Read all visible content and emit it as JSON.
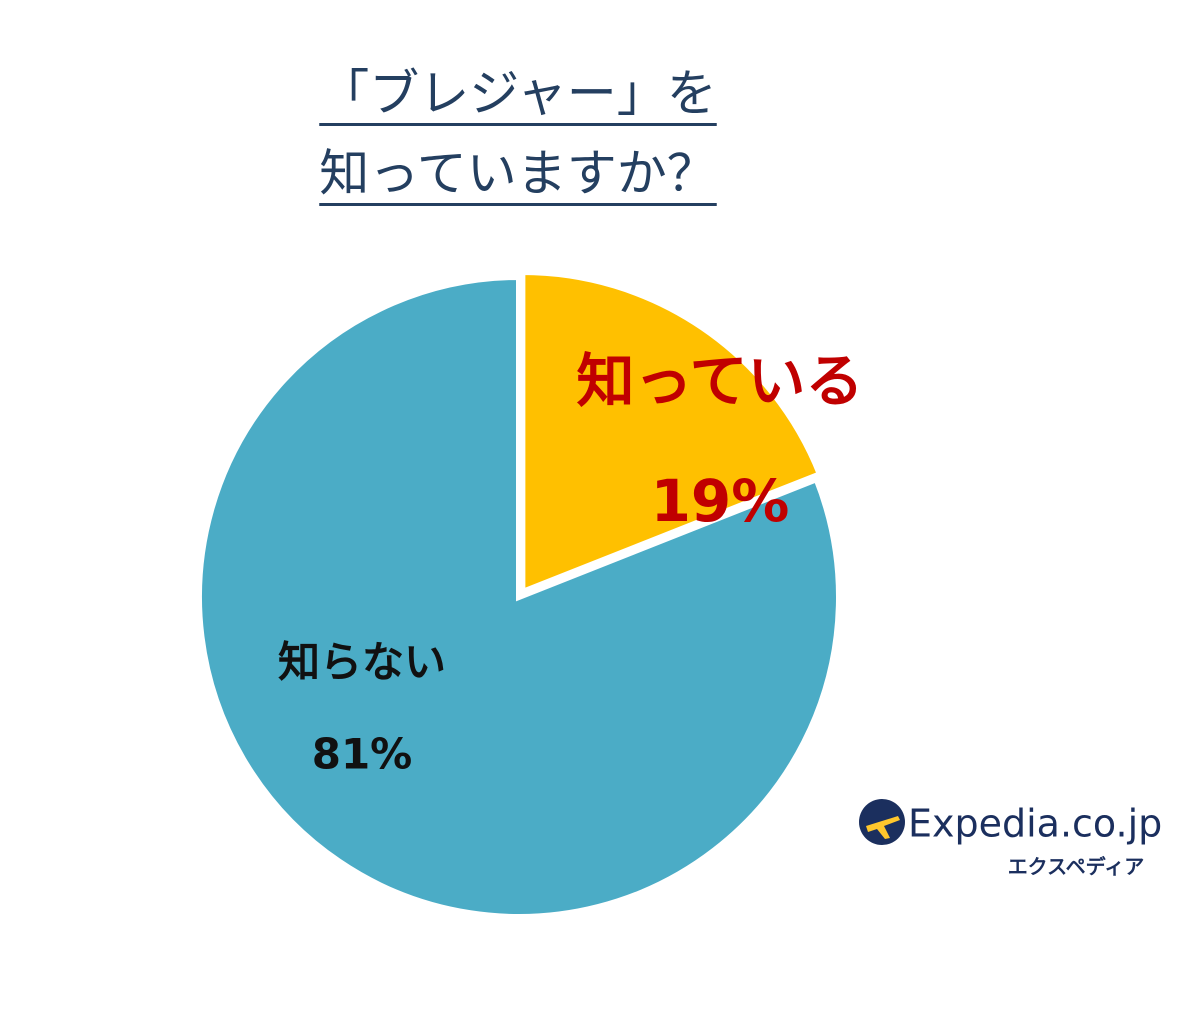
{
  "chart_data": {
    "type": "pie",
    "title": [
      "「ブレジャー」を",
      "知っていますか？"
    ],
    "categories": [
      "知っている",
      "知らない"
    ],
    "values": [
      19,
      81
    ],
    "value_labels": [
      "19%",
      "81%"
    ],
    "colors": [
      "#FFC000",
      "#4BACC6"
    ],
    "label_colors": [
      "#C00000",
      "#111111"
    ],
    "brand": {
      "name": "Expedia.co.jp",
      "subtitle": "エクスペディア"
    }
  }
}
